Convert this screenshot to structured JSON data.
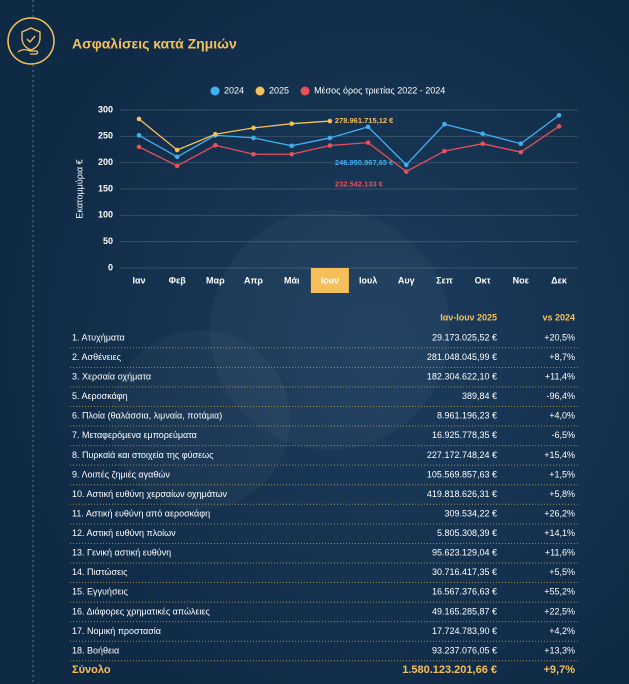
{
  "header": {
    "title": "Ασφαλίσεις κατά Ζημιών"
  },
  "chart_data": {
    "type": "line",
    "ylabel": "Εκατομμύρια €",
    "categories": [
      "Ιαν",
      "Φεβ",
      "Μαρ",
      "Απρ",
      "Μάι",
      "Ιουν",
      "Ιουλ",
      "Αυγ",
      "Σεπ",
      "Οκτ",
      "Νοε",
      "Δεκ"
    ],
    "highlight_category": "Ιουν",
    "ylim": [
      0,
      300
    ],
    "yticks": [
      0,
      50,
      100,
      150,
      200,
      250,
      300
    ],
    "grid": true,
    "legend": "top",
    "series": [
      {
        "name": "2024",
        "color": "#3fb0f0",
        "values": [
          252,
          211,
          252,
          247,
          232,
          246.95096765,
          268,
          196,
          273,
          255,
          236,
          290
        ],
        "value_labels": [
          null,
          null,
          null,
          null,
          null,
          "246.950.967,65 €",
          null,
          null,
          null,
          null,
          null,
          null
        ]
      },
      {
        "name": "2025",
        "color": "#f5c05a",
        "values": [
          283,
          224,
          254,
          266,
          274,
          278.96171512,
          null,
          null,
          null,
          null,
          null,
          null
        ],
        "value_labels": [
          null,
          null,
          null,
          null,
          null,
          "278.961.715,12 €",
          null,
          null,
          null,
          null,
          null,
          null
        ]
      },
      {
        "name": "Μέσος όρος τριετίας 2022 - 2024",
        "color": "#e8505b",
        "values": [
          230,
          194,
          233,
          216,
          216,
          232.542133,
          238,
          183,
          222,
          236,
          220,
          269
        ],
        "value_labels": [
          null,
          null,
          null,
          null,
          null,
          "232.542.133 €",
          null,
          null,
          null,
          null,
          null,
          null
        ]
      }
    ]
  },
  "table": {
    "columns": [
      "Ιαν-Ιουν 2025",
      "vs 2024"
    ],
    "rows": [
      [
        "1. Ατυχήματα",
        "29.173.025,52 €",
        "+20,5%"
      ],
      [
        "2. Ασθένειες",
        "281.048.045,99 €",
        "+8,7%"
      ],
      [
        "3. Χερσαία οχήματα",
        "182.304.622,10 €",
        "+11,4%"
      ],
      [
        "5. Αεροσκάφη",
        "389,84 €",
        "-96,4%"
      ],
      [
        "6. Πλοία (θαλάσσια, λιμναία, ποτάμια)",
        "8.961.196,23 €",
        "+4,0%"
      ],
      [
        "7. Μεταφερόμενα εμπορεύματα",
        "16.925.778,35 €",
        "-6,5%"
      ],
      [
        "8. Πυρκαϊά και στοιχεία της φύσεως",
        "227.172.748,24 €",
        "+15,4%"
      ],
      [
        "9. Λοιπές ζημιές αγαθών",
        "105.569.857,63 €",
        "+1,5%"
      ],
      [
        "10. Αστική ευθύνη χερσαίων οχημάτων",
        "419.818.626,31 €",
        "+5,8%"
      ],
      [
        "11. Αστική ευθύνη από αεροσκάφη",
        "309.534,22 €",
        "+26,2%"
      ],
      [
        "12. Αστική ευθύνη πλοίων",
        "5.805.308,39 €",
        "+14,1%"
      ],
      [
        "13. Γενική αστική ευθύνη",
        "95.623.129,04 €",
        "+11,6%"
      ],
      [
        "14. Πιστώσεις",
        "30.716.417,35 €",
        "+5,5%"
      ],
      [
        "15. Εγγυήσεις",
        "16.567.376,63 €",
        "+55,2%"
      ],
      [
        "16. Διάφορες χρηματικές απώλειες",
        "49.165.285,87 €",
        "+22,5%"
      ],
      [
        "17. Νομική προστασία",
        "17.724.783,90 €",
        "+4,2%"
      ],
      [
        "18. Βοήθεια",
        "93.237.076,05 €",
        "+13,3%"
      ]
    ],
    "total": [
      "Σύνολο",
      "1.580.123.201,66 €",
      "+9,7%"
    ]
  }
}
